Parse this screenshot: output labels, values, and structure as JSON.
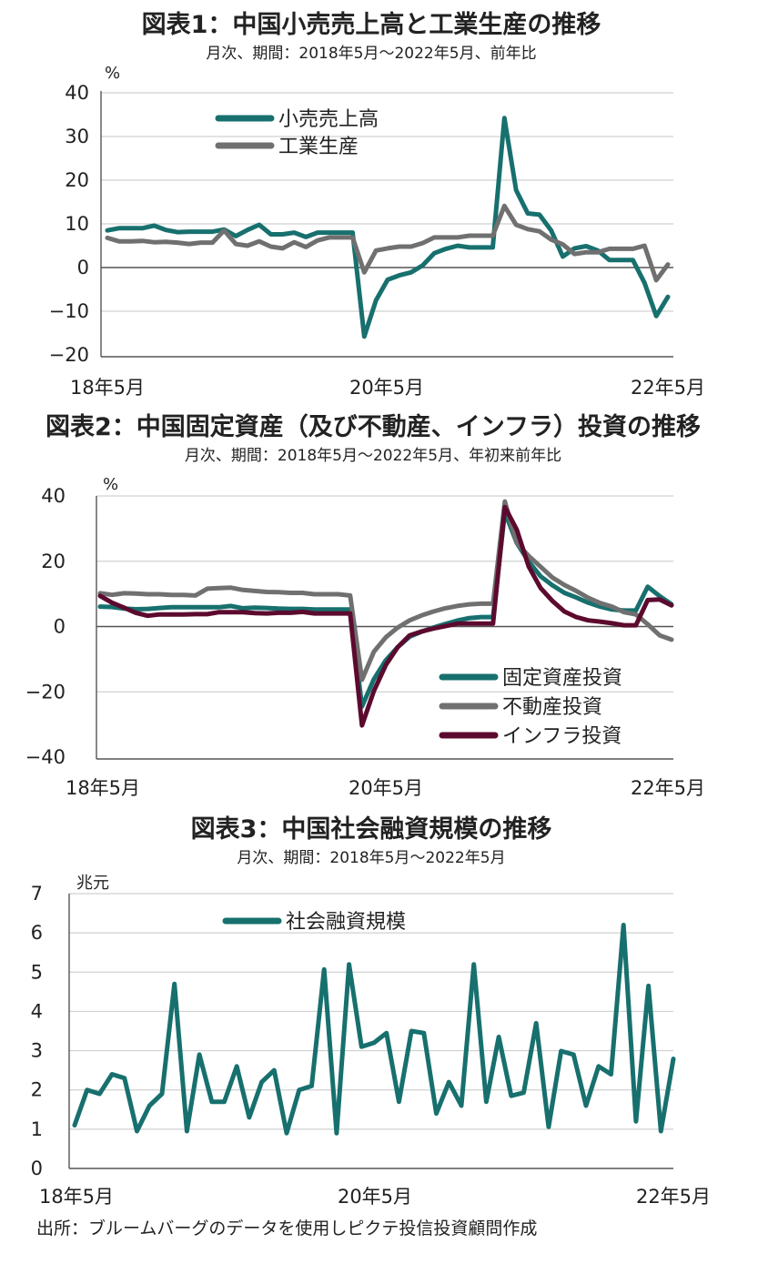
{
  "charts": [
    {
      "title": "図表1：中国小売売上高と工業生産の推移",
      "subtitle": "月次、期間：2018年5月～2022年5月、前年比",
      "unit": "%",
      "x_tick_labels": [
        "18年5月",
        "20年5月",
        "22年5月"
      ]
    },
    {
      "title": "図表2：中国固定資産（及び不動産、インフラ）投資の推移",
      "subtitle": "月次、期間：2018年5月～2022年5月、年初来前年比",
      "unit": "%",
      "x_tick_labels": [
        "18年5月",
        "20年5月",
        "22年5月"
      ]
    },
    {
      "title": "図表3：中国社会融資規模の推移",
      "subtitle": "月次、期間：2018年5月～2022年5月",
      "unit": "兆元",
      "x_tick_labels": [
        "18年5月",
        "20年5月",
        "22年5月"
      ]
    }
  ],
  "source": "出所：ブルームバーグのデータを使用しピクテ投信投資顧問作成",
  "chart_data": [
    {
      "type": "line",
      "title": "図表1：中国小売売上高と工業生産の推移",
      "ylabel": "%",
      "ylim": [
        -20,
        40
      ],
      "yticks": [
        -20,
        -10,
        0,
        10,
        20,
        30,
        40
      ],
      "grid": true,
      "legend": "top-left",
      "x_start": "2018-05",
      "x_end": "2022-05",
      "series": [
        {
          "name": "小売売上高",
          "color": "#17706e",
          "values": [
            8.5,
            9.0,
            9.0,
            9.0,
            9.6,
            8.6,
            8.1,
            8.2,
            8.2,
            8.2,
            8.7,
            7.2,
            8.6,
            9.8,
            7.6,
            7.6,
            8.0,
            7.0,
            8.0,
            8.0,
            8.0,
            8.0,
            -15.8,
            -7.5,
            -2.8,
            -1.8,
            -1.1,
            0.5,
            3.3,
            4.3,
            5.0,
            4.6,
            4.6,
            4.6,
            34.2,
            17.7,
            12.4,
            12.1,
            8.5,
            2.5,
            4.4,
            4.9,
            3.9,
            1.7,
            1.7,
            1.7,
            -3.5,
            -11.1,
            -6.7
          ]
        },
        {
          "name": "工業生産",
          "color": "#707070",
          "values": [
            6.8,
            6.0,
            6.0,
            6.1,
            5.8,
            5.9,
            5.7,
            5.4,
            5.7,
            5.7,
            8.5,
            5.4,
            5.0,
            6.0,
            4.8,
            4.4,
            5.8,
            4.7,
            6.2,
            6.9,
            6.9,
            6.9,
            -1.1,
            3.9,
            4.4,
            4.8,
            4.8,
            5.6,
            6.9,
            6.9,
            6.9,
            7.3,
            7.3,
            7.3,
            14.1,
            9.8,
            8.8,
            8.3,
            6.4,
            5.3,
            3.1,
            3.5,
            3.5,
            4.3,
            4.3,
            4.3,
            5.0,
            -2.9,
            0.7
          ]
        }
      ]
    },
    {
      "type": "line",
      "title": "図表2：中国固定資産（及び不動産、インフラ）投資の推移",
      "ylabel": "%",
      "ylim": [
        -40,
        40
      ],
      "yticks": [
        -40,
        -20,
        0,
        20,
        40
      ],
      "grid": true,
      "legend": "bottom-right",
      "x_start": "2018-05",
      "x_end": "2022-05",
      "series": [
        {
          "name": "固定資産投資",
          "color": "#17706e",
          "values": [
            6.1,
            6.0,
            5.5,
            5.3,
            5.4,
            5.7,
            5.9,
            5.9,
            5.9,
            5.9,
            5.9,
            6.3,
            5.6,
            5.8,
            5.7,
            5.5,
            5.4,
            5.4,
            5.2,
            5.2,
            5.2,
            5.2,
            -24.5,
            -16.1,
            -10.3,
            -6.3,
            -3.1,
            -1.6,
            -0.3,
            0.8,
            1.8,
            2.6,
            2.9,
            2.9,
            35.0,
            25.6,
            19.9,
            15.4,
            12.6,
            10.3,
            8.9,
            7.3,
            6.1,
            5.2,
            4.9,
            4.9,
            12.2,
            9.3,
            6.8
          ]
        },
        {
          "name": "不動産投資",
          "color": "#707070",
          "values": [
            10.2,
            9.7,
            10.2,
            10.1,
            9.9,
            9.9,
            9.7,
            9.7,
            9.5,
            11.6,
            11.8,
            11.9,
            11.2,
            10.9,
            10.6,
            10.5,
            10.3,
            10.3,
            9.9,
            9.9,
            9.9,
            9.5,
            -16.3,
            -7.7,
            -3.3,
            -0.3,
            1.9,
            3.4,
            4.6,
            5.6,
            6.3,
            6.8,
            7.0,
            7.0,
            38.3,
            25.6,
            21.6,
            18.3,
            15.0,
            12.7,
            10.9,
            8.8,
            7.2,
            6.1,
            4.4,
            3.7,
            0.7,
            -2.7,
            -4.0
          ]
        },
        {
          "name": "インフラ投資",
          "color": "#5c0a2e",
          "values": [
            9.4,
            7.3,
            5.8,
            4.2,
            3.3,
            3.7,
            3.7,
            3.7,
            3.8,
            3.8,
            4.4,
            4.4,
            4.4,
            4.1,
            4.0,
            4.2,
            4.2,
            4.5,
            4.0,
            4.0,
            4.0,
            4.0,
            -30.3,
            -19.7,
            -11.8,
            -6.3,
            -2.7,
            -1.5,
            -0.6,
            0.1,
            0.9,
            0.9,
            0.9,
            0.9,
            36.6,
            29.7,
            18.4,
            11.8,
            7.8,
            4.6,
            2.9,
            1.9,
            1.5,
            1.0,
            0.4,
            0.4,
            8.1,
            8.3,
            6.5
          ]
        }
      ]
    },
    {
      "type": "line",
      "title": "図表3：中国社会融資規模の推移",
      "ylabel": "兆元",
      "ylim": [
        0,
        7
      ],
      "yticks": [
        0,
        1,
        2,
        3,
        4,
        5,
        6,
        7
      ],
      "grid": true,
      "legend": "top-left",
      "x_start": "2018-05",
      "x_end": "2022-05",
      "series": [
        {
          "name": "社会融資規模",
          "color": "#17706e",
          "values": [
            1.1,
            2.0,
            1.9,
            2.4,
            2.3,
            0.95,
            1.6,
            1.9,
            4.7,
            0.95,
            2.9,
            1.7,
            1.7,
            2.6,
            1.3,
            2.2,
            2.5,
            0.9,
            2.0,
            2.1,
            5.07,
            0.9,
            5.2,
            3.1,
            3.2,
            3.45,
            1.7,
            3.5,
            3.45,
            1.4,
            2.2,
            1.6,
            5.2,
            1.7,
            3.35,
            1.85,
            1.93,
            3.7,
            1.06,
            2.99,
            2.9,
            1.6,
            2.6,
            2.4,
            6.2,
            1.2,
            4.65,
            0.95,
            2.79
          ]
        }
      ]
    }
  ]
}
